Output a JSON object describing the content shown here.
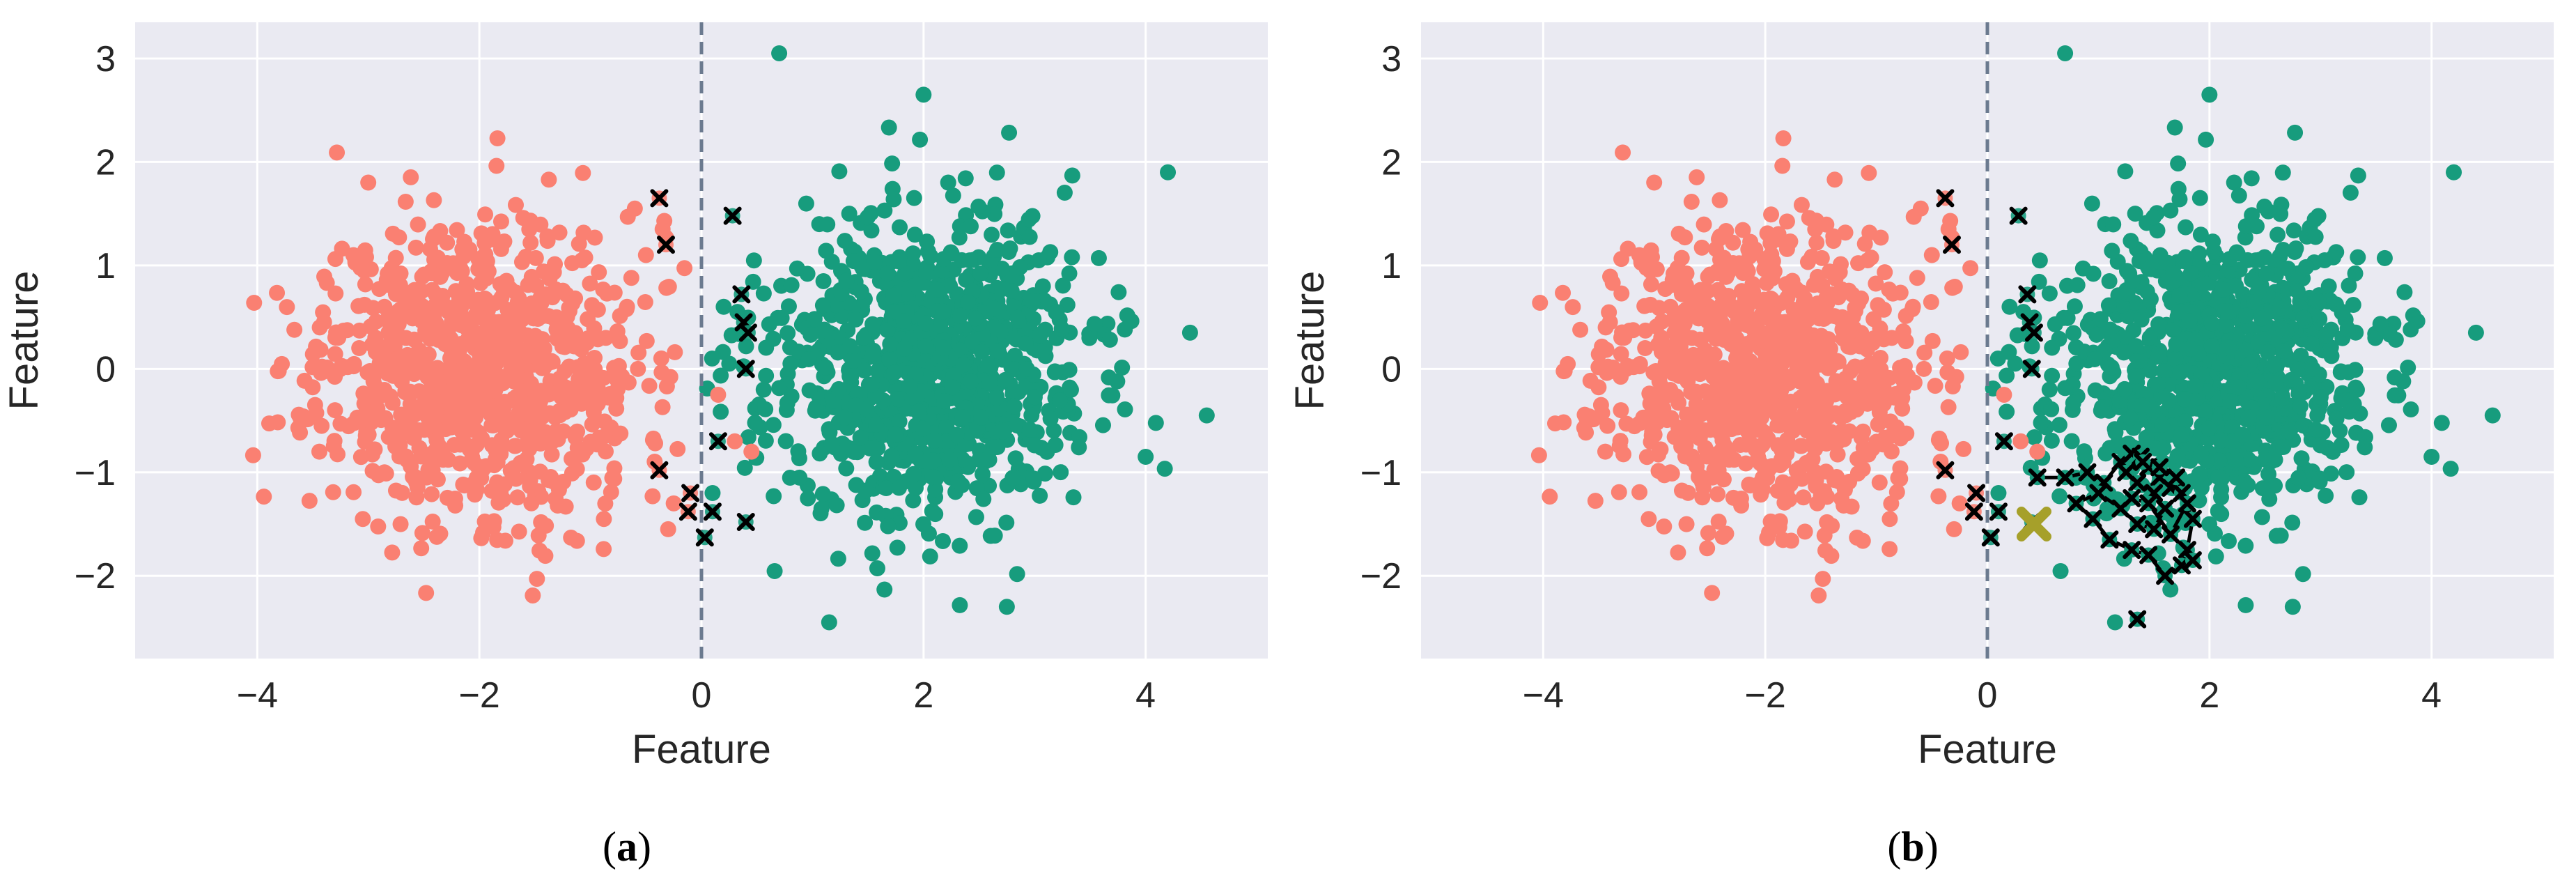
{
  "chart_data": [
    {
      "type": "scatter",
      "panel_label_open": "(",
      "panel_label_letter": "a",
      "panel_label_close": ")",
      "xlabel": "Feature",
      "ylabel": "Feature",
      "xlim": [
        -5.1,
        5.1
      ],
      "ylim": [
        -2.8,
        3.35
      ],
      "xticks": [
        -4,
        -2,
        0,
        2,
        4
      ],
      "yticks": [
        -2,
        -1,
        0,
        1,
        2,
        3
      ],
      "grid": true,
      "vline_x": 0,
      "colors": {
        "class_a": "#fa8072",
        "class_b": "#179c7d",
        "marker": "#000000",
        "highlight": "#a6a02a",
        "background": "#eaeaf2",
        "vline": "#6b7a8f"
      },
      "clusters": [
        {
          "name": "",
          "center": [
            -2,
            0
          ],
          "std": 0.72,
          "count": 950,
          "color": "#fa8072",
          "seed": 11
        },
        {
          "name": "",
          "center": [
            2,
            0
          ],
          "std": 0.72,
          "count": 950,
          "color": "#179c7d",
          "seed": 23
        }
      ],
      "extra_points": [
        {
          "x": -0.35,
          "y": 1.35,
          "c": "a"
        },
        {
          "x": -0.5,
          "y": 1.1,
          "c": "a"
        },
        {
          "x": -0.25,
          "y": -1.3,
          "c": "a"
        },
        {
          "x": -0.3,
          "y": -1.55,
          "c": "a"
        },
        {
          "x": 0.3,
          "y": -0.7,
          "c": "a"
        },
        {
          "x": 0.45,
          "y": -0.8,
          "c": "a"
        },
        {
          "x": -0.6,
          "y": 1.55,
          "c": "a"
        },
        {
          "x": 0.15,
          "y": -0.25,
          "c": "a"
        },
        {
          "x": 0.7,
          "y": 3.05,
          "c": "b"
        },
        {
          "x": 2.0,
          "y": 2.65,
          "c": "b"
        },
        {
          "x": 4.2,
          "y": 1.9,
          "c": "b"
        },
        {
          "x": 4.55,
          "y": -0.45,
          "c": "b"
        },
        {
          "x": 1.15,
          "y": -2.45,
          "c": "b"
        },
        {
          "x": 2.75,
          "y": -2.3,
          "c": "b"
        },
        {
          "x": 4.0,
          "y": -0.85,
          "c": "b"
        },
        {
          "x": 4.4,
          "y": 0.35,
          "c": "b"
        },
        {
          "x": 0.2,
          "y": 0.6,
          "c": "b"
        },
        {
          "x": 0.1,
          "y": -1.2,
          "c": "b"
        },
        {
          "x": 0.25,
          "y": 0.05,
          "c": "b"
        }
      ],
      "crosses": [
        {
          "x": -0.38,
          "y": 1.65
        },
        {
          "x": -0.32,
          "y": 1.2
        },
        {
          "x": 0.28,
          "y": 1.48
        },
        {
          "x": 0.36,
          "y": 0.72
        },
        {
          "x": 0.38,
          "y": 0.45
        },
        {
          "x": 0.42,
          "y": 0.35
        },
        {
          "x": 0.4,
          "y": 0.0
        },
        {
          "x": 0.15,
          "y": -0.7
        },
        {
          "x": -0.38,
          "y": -0.98
        },
        {
          "x": -0.1,
          "y": -1.2
        },
        {
          "x": -0.12,
          "y": -1.38
        },
        {
          "x": 0.1,
          "y": -1.38
        },
        {
          "x": 0.03,
          "y": -1.63
        },
        {
          "x": 0.4,
          "y": -1.48
        }
      ],
      "path": [],
      "highlight": null
    },
    {
      "type": "scatter",
      "panel_label_open": "(",
      "panel_label_letter": "b",
      "panel_label_close": ")",
      "xlabel": "Feature",
      "ylabel": "Feature",
      "xlim": [
        -5.1,
        5.1
      ],
      "ylim": [
        -2.8,
        3.35
      ],
      "xticks": [
        -4,
        -2,
        0,
        2,
        4
      ],
      "yticks": [
        -2,
        -1,
        0,
        1,
        2,
        3
      ],
      "grid": true,
      "vline_x": 0,
      "colors": {
        "class_a": "#fa8072",
        "class_b": "#179c7d",
        "marker": "#000000",
        "highlight": "#a6a02a",
        "background": "#eaeaf2",
        "vline": "#6b7a8f"
      },
      "clusters": [
        {
          "name": "",
          "center": [
            -2,
            0
          ],
          "std": 0.72,
          "count": 950,
          "color": "#fa8072",
          "seed": 11
        },
        {
          "name": "",
          "center": [
            2,
            0
          ],
          "std": 0.72,
          "count": 950,
          "color": "#179c7d",
          "seed": 23
        }
      ],
      "extra_points": [
        {
          "x": -0.35,
          "y": 1.35,
          "c": "a"
        },
        {
          "x": -0.5,
          "y": 1.1,
          "c": "a"
        },
        {
          "x": -0.25,
          "y": -1.3,
          "c": "a"
        },
        {
          "x": -0.3,
          "y": -1.55,
          "c": "a"
        },
        {
          "x": 0.3,
          "y": -0.7,
          "c": "a"
        },
        {
          "x": 0.45,
          "y": -0.8,
          "c": "a"
        },
        {
          "x": -0.6,
          "y": 1.55,
          "c": "a"
        },
        {
          "x": 0.15,
          "y": -0.25,
          "c": "a"
        },
        {
          "x": 0.7,
          "y": 3.05,
          "c": "b"
        },
        {
          "x": 2.0,
          "y": 2.65,
          "c": "b"
        },
        {
          "x": 4.2,
          "y": 1.9,
          "c": "b"
        },
        {
          "x": 4.55,
          "y": -0.45,
          "c": "b"
        },
        {
          "x": 1.15,
          "y": -2.45,
          "c": "b"
        },
        {
          "x": 2.75,
          "y": -2.3,
          "c": "b"
        },
        {
          "x": 4.0,
          "y": -0.85,
          "c": "b"
        },
        {
          "x": 4.4,
          "y": 0.35,
          "c": "b"
        },
        {
          "x": 0.2,
          "y": 0.6,
          "c": "b"
        },
        {
          "x": 0.1,
          "y": -1.2,
          "c": "b"
        },
        {
          "x": 0.25,
          "y": 0.05,
          "c": "b"
        }
      ],
      "crosses": [
        {
          "x": -0.38,
          "y": 1.65
        },
        {
          "x": -0.32,
          "y": 1.2
        },
        {
          "x": 0.28,
          "y": 1.48
        },
        {
          "x": 0.36,
          "y": 0.72
        },
        {
          "x": 0.38,
          "y": 0.45
        },
        {
          "x": 0.42,
          "y": 0.35
        },
        {
          "x": 0.4,
          "y": 0.0
        },
        {
          "x": 0.15,
          "y": -0.7
        },
        {
          "x": -0.38,
          "y": -0.98
        },
        {
          "x": -0.1,
          "y": -1.2
        },
        {
          "x": -0.12,
          "y": -1.38
        },
        {
          "x": 0.1,
          "y": -1.38
        },
        {
          "x": 0.03,
          "y": -1.63
        },
        {
          "x": 0.4,
          "y": -1.48
        }
      ],
      "path": [
        {
          "x": 0.45,
          "y": -1.05
        },
        {
          "x": 0.7,
          "y": -1.05
        },
        {
          "x": 0.9,
          "y": -1.0
        },
        {
          "x": 1.05,
          "y": -1.1
        },
        {
          "x": 1.2,
          "y": -0.9
        },
        {
          "x": 1.3,
          "y": -0.82
        },
        {
          "x": 1.38,
          "y": -0.85
        },
        {
          "x": 1.45,
          "y": -0.95
        },
        {
          "x": 1.55,
          "y": -1.05
        },
        {
          "x": 1.65,
          "y": -1.15
        },
        {
          "x": 1.75,
          "y": -1.2
        },
        {
          "x": 1.85,
          "y": -1.45
        },
        {
          "x": 1.8,
          "y": -1.75
        },
        {
          "x": 1.75,
          "y": -1.9
        },
        {
          "x": 1.6,
          "y": -2.0
        },
        {
          "x": 1.45,
          "y": -1.8
        },
        {
          "x": 1.3,
          "y": -1.75
        },
        {
          "x": 1.1,
          "y": -1.65
        },
        {
          "x": 0.95,
          "y": -1.45
        },
        {
          "x": 0.8,
          "y": -1.3
        },
        {
          "x": 1.0,
          "y": -1.2
        },
        {
          "x": 1.2,
          "y": -1.35
        },
        {
          "x": 1.35,
          "y": -1.5
        },
        {
          "x": 1.5,
          "y": -1.55
        },
        {
          "x": 1.6,
          "y": -1.35
        },
        {
          "x": 1.5,
          "y": -1.2
        },
        {
          "x": 1.35,
          "y": -1.1
        },
        {
          "x": 1.25,
          "y": -1.0
        },
        {
          "x": 1.4,
          "y": -0.9
        },
        {
          "x": 1.55,
          "y": -0.95
        },
        {
          "x": 1.7,
          "y": -1.05
        },
        {
          "x": 1.8,
          "y": -1.3
        },
        {
          "x": 1.65,
          "y": -1.6
        },
        {
          "x": 1.45,
          "y": -1.3
        },
        {
          "x": 1.3,
          "y": -1.25
        }
      ],
      "stray_crosses": [
        {
          "x": 1.35,
          "y": -2.42
        },
        {
          "x": 1.85,
          "y": -1.85
        }
      ],
      "highlight": {
        "x": 0.42,
        "y": -1.5
      }
    }
  ]
}
